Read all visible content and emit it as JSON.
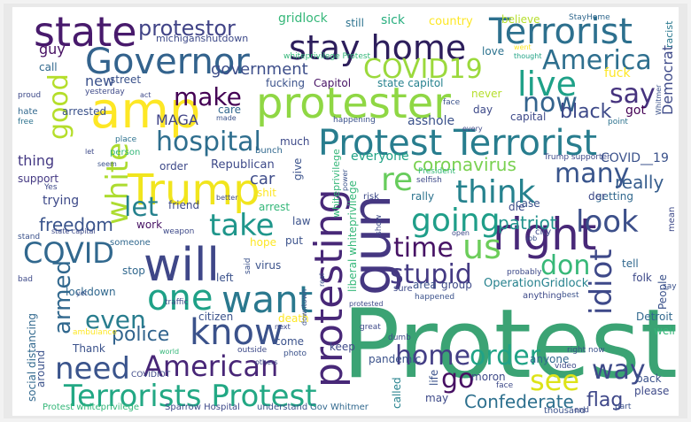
{
  "words": [
    {
      "text": "Protest",
      "color": "#3ba374"
    },
    {
      "text": "Protest Terrorist",
      "color": "#287d8e"
    },
    {
      "text": "Terrorists Protest",
      "color": "#22a884"
    },
    {
      "text": "Trump",
      "color": "#f1e51d"
    },
    {
      "text": "will",
      "color": "#3f4788"
    },
    {
      "text": "protester",
      "color": "#8fd744"
    },
    {
      "text": "state",
      "color": "#481a6c"
    },
    {
      "text": "stay home",
      "color": "#2d1e5c"
    },
    {
      "text": "Terrorist",
      "color": "#2d708e"
    },
    {
      "text": "Governor",
      "color": "#33638d"
    },
    {
      "text": "amp",
      "color": "#fde725"
    },
    {
      "text": "protesting",
      "color": "#482878"
    },
    {
      "text": "gun",
      "color": "#453781"
    },
    {
      "text": "right",
      "color": "#482878"
    },
    {
      "text": "want",
      "color": "#2a788e"
    },
    {
      "text": "know",
      "color": "#3b528b"
    },
    {
      "text": "one",
      "color": "#1fa187"
    },
    {
      "text": "American",
      "color": "#482677"
    },
    {
      "text": "need",
      "color": "#3a548c"
    },
    {
      "text": "home",
      "color": "#433e85"
    },
    {
      "text": "order",
      "color": "#20a386"
    },
    {
      "text": "look",
      "color": "#3c4f8a"
    },
    {
      "text": "going",
      "color": "#1f9e89"
    },
    {
      "text": "think",
      "color": "#26828e"
    },
    {
      "text": "take",
      "color": "#1f968b"
    },
    {
      "text": "us",
      "color": "#6ccd5a"
    },
    {
      "text": "COVID",
      "color": "#31688e"
    },
    {
      "text": "COVID19",
      "color": "#9bd93c"
    },
    {
      "text": "America",
      "color": "#2e6f8e"
    },
    {
      "text": "live",
      "color": "#1fa188"
    },
    {
      "text": "now",
      "color": "#33638d"
    },
    {
      "text": "say",
      "color": "#46337e"
    },
    {
      "text": "make",
      "color": "#440154"
    },
    {
      "text": "hospital",
      "color": "#2e6e8e"
    },
    {
      "text": "white",
      "color": "#addc30"
    },
    {
      "text": "good",
      "color": "#b5de2b"
    },
    {
      "text": "let",
      "color": "#26828e"
    },
    {
      "text": "re",
      "color": "#67cc5c"
    },
    {
      "text": "many",
      "color": "#39558c"
    },
    {
      "text": "time",
      "color": "#471365"
    },
    {
      "text": "stupid",
      "color": "#443a83"
    },
    {
      "text": "don",
      "color": "#37b878"
    },
    {
      "text": "idiot",
      "color": "#3e4989"
    },
    {
      "text": "way",
      "color": "#3e4a89"
    },
    {
      "text": "see",
      "color": "#dde318"
    },
    {
      "text": "go",
      "color": "#471063"
    },
    {
      "text": "armed",
      "color": "#31688e"
    },
    {
      "text": "even",
      "color": "#287d8e"
    },
    {
      "text": "police",
      "color": "#32648e"
    },
    {
      "text": "freedom",
      "color": "#3a548c"
    },
    {
      "text": "protestor",
      "color": "#414487"
    },
    {
      "text": "coronavirus",
      "color": "#7ad151"
    },
    {
      "text": "patriot",
      "color": "#20928c"
    },
    {
      "text": "black",
      "color": "#3e4a89"
    },
    {
      "text": "Confederate",
      "color": "#2d708e"
    },
    {
      "text": "flag",
      "color": "#3f4889"
    },
    {
      "text": "really",
      "color": "#365d8d"
    },
    {
      "text": "government",
      "color": "#3d4e8a"
    },
    {
      "text": "MAGA",
      "color": "#414487"
    },
    {
      "text": "thing",
      "color": "#443983"
    },
    {
      "text": "new",
      "color": "#3b528b"
    },
    {
      "text": "car",
      "color": "#3e4c8a"
    },
    {
      "text": "gridlock",
      "color": "#35b779"
    },
    {
      "text": "sick",
      "color": "#29af7f"
    },
    {
      "text": "country",
      "color": "#fde725"
    },
    {
      "text": "believe",
      "color": "#b5de2b"
    },
    {
      "text": "still",
      "color": "#2c728e"
    },
    {
      "text": "StayHome",
      "color": "#31688e"
    },
    {
      "text": "michiganshutdown",
      "color": "#3e4a89"
    },
    {
      "text": "Democrat",
      "color": "#3e4a89"
    },
    {
      "text": "racist",
      "color": "#2a788e"
    },
    {
      "text": "guy",
      "color": "#471063"
    },
    {
      "text": "call",
      "color": "#31688e"
    },
    {
      "text": "street",
      "color": "#3b528b"
    },
    {
      "text": "fucking",
      "color": "#3b528b"
    },
    {
      "text": "Capitol",
      "color": "#471365"
    },
    {
      "text": "state capitol",
      "color": "#26828e"
    },
    {
      "text": "love",
      "color": "#2c728e"
    },
    {
      "text": "went",
      "color": "#fde725"
    },
    {
      "text": "thought",
      "color": "#20a386"
    },
    {
      "text": "fuck",
      "color": "#fde725"
    },
    {
      "text": "face",
      "color": "#3b528b"
    },
    {
      "text": "never",
      "color": "#b5de2b"
    },
    {
      "text": "day",
      "color": "#3e4a89"
    },
    {
      "text": "got",
      "color": "#440154"
    },
    {
      "text": "capital",
      "color": "#3e4a89"
    },
    {
      "text": "point",
      "color": "#2c728e"
    },
    {
      "text": "asshole",
      "color": "#3b528b"
    },
    {
      "text": "care",
      "color": "#31688e"
    },
    {
      "text": "arrested",
      "color": "#3b528b"
    },
    {
      "text": "proud",
      "color": "#3e4a89"
    },
    {
      "text": "yesterday",
      "color": "#3e4a89"
    },
    {
      "text": "hate",
      "color": "#31688e"
    },
    {
      "text": "free",
      "color": "#2c728e"
    },
    {
      "text": "much",
      "color": "#3e4a89"
    },
    {
      "text": "COVID__19",
      "color": "#3b528b"
    },
    {
      "text": "Republican",
      "color": "#3e4a89"
    },
    {
      "text": "order",
      "color": "#3e4a89"
    },
    {
      "text": "support",
      "color": "#443983"
    },
    {
      "text": "everyone",
      "color": "#20a386"
    },
    {
      "text": "bunch",
      "color": "#31688e"
    },
    {
      "text": "shit",
      "color": "#fde725"
    },
    {
      "text": "give",
      "color": "#3b528b"
    },
    {
      "text": "person",
      "color": "#35b779"
    },
    {
      "text": "place",
      "color": "#2c728e"
    },
    {
      "text": "trying",
      "color": "#3e4a89"
    },
    {
      "text": "friend",
      "color": "#3e4a89"
    },
    {
      "text": "rally",
      "color": "#2c728e"
    },
    {
      "text": "risk",
      "color": "#3e4a89"
    },
    {
      "text": "getting",
      "color": "#31688e"
    },
    {
      "text": "arrest",
      "color": "#35b779"
    },
    {
      "text": "law",
      "color": "#3b528b"
    },
    {
      "text": "work",
      "color": "#471365"
    },
    {
      "text": "someone",
      "color": "#31688e"
    },
    {
      "text": "weapon",
      "color": "#3e4a89"
    },
    {
      "text": "hope",
      "color": "#fde725"
    },
    {
      "text": "put",
      "color": "#3b528b"
    },
    {
      "text": "tell",
      "color": "#31688e"
    },
    {
      "text": "die",
      "color": "#3e4a89"
    },
    {
      "text": "city",
      "color": "#3e4a89"
    },
    {
      "text": "stop",
      "color": "#31688e"
    },
    {
      "text": "virus",
      "color": "#3b528b"
    },
    {
      "text": "left",
      "color": "#3b528b"
    },
    {
      "text": "citizen",
      "color": "#3b528b"
    },
    {
      "text": "death",
      "color": "#fde725"
    },
    {
      "text": "come",
      "color": "#3b528b"
    },
    {
      "text": "well",
      "color": "#35b779"
    },
    {
      "text": "Detroit",
      "color": "#31688e"
    },
    {
      "text": "folk",
      "color": "#3e4a89"
    },
    {
      "text": "area",
      "color": "#3b528b"
    },
    {
      "text": "group",
      "color": "#3e4a89"
    },
    {
      "text": "OperationGridlock",
      "color": "#26828e"
    },
    {
      "text": "People",
      "color": "#3b528b"
    },
    {
      "text": "lockdown",
      "color": "#31688e"
    },
    {
      "text": "Thank",
      "color": "#3b528b"
    },
    {
      "text": "social distancing",
      "color": "#31688e"
    },
    {
      "text": "pandemic",
      "color": "#3b528b"
    },
    {
      "text": "anyone",
      "color": "#31688e"
    },
    {
      "text": "keep",
      "color": "#3e4a89"
    },
    {
      "text": "moron",
      "color": "#3e4a89"
    },
    {
      "text": "back",
      "color": "#3b528b"
    },
    {
      "text": "please",
      "color": "#3e4a89"
    },
    {
      "text": "called",
      "color": "#26828e"
    },
    {
      "text": "life",
      "color": "#3b528b"
    },
    {
      "text": "may",
      "color": "#3e4a89"
    },
    {
      "text": "Sparrow Hospital",
      "color": "#3e4a89"
    },
    {
      "text": "understand",
      "color": "#3b528b"
    },
    {
      "text": "Gov Whitmer",
      "color": "#31688e"
    },
    {
      "text": "Protest whiteprivilege",
      "color": "#35b779"
    },
    {
      "text": "around",
      "color": "#3b528b"
    },
    {
      "text": "COVIDIOT",
      "color": "#3e4a89"
    },
    {
      "text": "liberal whiteprivilege",
      "color": "#35b779"
    },
    {
      "text": "whiteprivilege",
      "color": "#35b779"
    },
    {
      "text": "ambulance",
      "color": "#fde725"
    },
    {
      "text": "sure",
      "color": "#3e4a89"
    },
    {
      "text": "happened",
      "color": "#3b528b"
    },
    {
      "text": "anything",
      "color": "#3e4a89"
    },
    {
      "text": "best",
      "color": "#3b528b"
    },
    {
      "text": "probably",
      "color": "#3e4a89"
    },
    {
      "text": "thousand",
      "color": "#3b528b"
    },
    {
      "text": "part",
      "color": "#3b528b"
    },
    {
      "text": "video",
      "color": "#3e4a89"
    },
    {
      "text": "right now",
      "color": "#3b528b"
    },
    {
      "text": "end",
      "color": "#3e4a89"
    },
    {
      "text": "face",
      "color": "#3e4a89"
    },
    {
      "text": "Trump supporter",
      "color": "#3e4a89"
    },
    {
      "text": "President",
      "color": "#35b779"
    },
    {
      "text": "selfish",
      "color": "#3e4a89"
    },
    {
      "text": "happening",
      "color": "#3b528b"
    },
    {
      "text": "every",
      "color": "#3e4a89"
    },
    {
      "text": "outside",
      "color": "#3e4a89"
    },
    {
      "text": "photo",
      "color": "#3b528b"
    },
    {
      "text": "great",
      "color": "#3e4a89"
    },
    {
      "text": "dumb",
      "color": "#3e4a89"
    },
    {
      "text": "say",
      "color": "#3b528b"
    },
    {
      "text": "open",
      "color": "#3e4a89"
    },
    {
      "text": "job",
      "color": "#3b528b"
    },
    {
      "text": "protested",
      "color": "#3e4a89"
    },
    {
      "text": "real",
      "color": "#3b528b"
    },
    {
      "text": "traffic",
      "color": "#3e4a89"
    },
    {
      "text": "said",
      "color": "#3b528b"
    },
    {
      "text": "next",
      "color": "#3e4a89"
    },
    {
      "text": "world",
      "color": "#35b779"
    },
    {
      "text": "others",
      "color": "#3e4a89"
    },
    {
      "text": "downtown",
      "color": "#3b528b"
    },
    {
      "text": "act",
      "color": "#3e4a89"
    },
    {
      "text": "made",
      "color": "#3b528b"
    },
    {
      "text": "Yes",
      "color": "#3e4a89"
    },
    {
      "text": "seem",
      "color": "#3b528b"
    },
    {
      "text": "let",
      "color": "#3e4a89"
    },
    {
      "text": "stand",
      "color": "#3b528b"
    },
    {
      "text": "state capital",
      "color": "#3e4a89"
    },
    {
      "text": "bad",
      "color": "#3e4a89"
    },
    {
      "text": "yet",
      "color": "#3b528b"
    },
    {
      "text": "mean",
      "color": "#3e4a89"
    },
    {
      "text": "show",
      "color": "#3e4a89"
    },
    {
      "text": "power",
      "color": "#3b528b"
    },
    {
      "text": "better",
      "color": "#3e4a89"
    },
    {
      "text": "case",
      "color": "#3b528b"
    },
    {
      "text": "der",
      "color": "#3e4a89"
    },
    {
      "text": "Whitmer",
      "color": "#3b528b"
    },
    {
      "text": "whiteprivilege Protest",
      "color": "#35b779"
    }
  ]
}
